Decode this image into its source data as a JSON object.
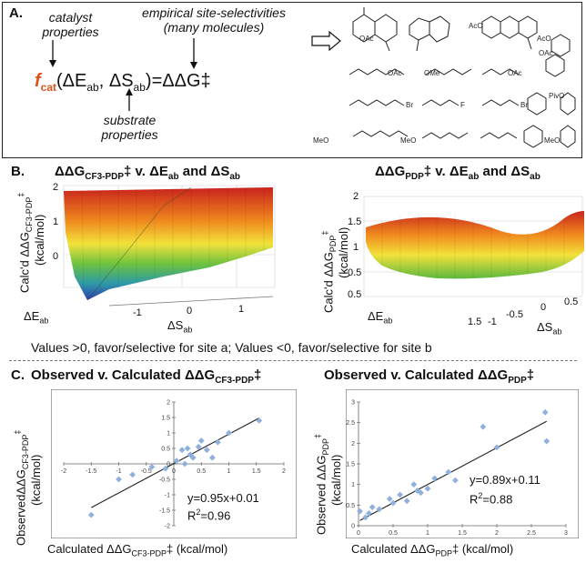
{
  "panel_a": {
    "label": "A.",
    "catalyst_note_1": "catalyst",
    "catalyst_note_2": "properties",
    "empirical_note_1": "empirical site-selectivities",
    "empirical_note_2": "(many molecules)",
    "f": "f",
    "cat": "cat",
    "eq_rest": "(ΔE",
    "ab1": "ab",
    "comma": ", ΔS",
    "ab2": "ab",
    "eq_end": ")=ΔΔG‡",
    "substrate_note_1": "substrate",
    "substrate_note_2": "properties",
    "molecule_labels": [
      "OAc",
      "AcO",
      "OAc",
      "AcO",
      "OMe",
      "OAc",
      "OAc",
      "Br",
      "F",
      "Br",
      "PivO",
      "MeO",
      "MeO",
      "MeO"
    ]
  },
  "panel_b": {
    "label": "B.",
    "left_title": "ΔΔG",
    "left_title_sub": "CF3-PDP",
    "left_title_rest": "‡ v. ΔE",
    "left_title_sub2": "ab",
    "left_title_rest2": " and ΔS",
    "left_title_sub3": "ab",
    "left_ylabel": "Calc'd ΔΔG",
    "left_ylabel_sub": "CF3-PDP",
    "left_ylabel_sup": "‡",
    "left_ylabel_units": "(kcal/mol)",
    "left_zticks": [
      "2",
      "1",
      "0"
    ],
    "left_xticks": [
      "-1",
      "0",
      "1"
    ],
    "left_xlabel": "ΔS",
    "left_xlabel_sub": "ab",
    "left_elabel": "ΔE",
    "left_elabel_sub": "ab",
    "right_title": "ΔΔG",
    "right_title_sub": "PDP",
    "right_title_rest": "‡ v. ΔE",
    "right_title_sub2": "ab",
    "right_title_rest2": " and ΔS",
    "right_title_sub3": "ab",
    "right_ylabel": "Calc'd ΔΔG",
    "right_ylabel_sub": "PDP",
    "right_ylabel_sup": "‡",
    "right_ylabel_units": "(kcal/mol)",
    "right_zticks": [
      "2",
      "1.5",
      "1",
      "0.5"
    ],
    "right_eticks": [
      "0.5",
      "1.5"
    ],
    "right_sticks": [
      "-1",
      "-0.5",
      "0",
      "0.5"
    ],
    "right_xlabel": "ΔS",
    "right_xlabel_sub": "ab",
    "right_elabel": "ΔE",
    "right_elabel_sub": "ab",
    "note": "Values >0, favor/selective for site a; Values <0, favor/selective for site b"
  },
  "panel_c": {
    "label": "C.",
    "left_title": "Observed v. Calculated ΔΔG",
    "left_title_sub": "CF3-PDP",
    "left_title_sup": "‡",
    "right_title": "Observed v. Calculated ΔΔG",
    "right_title_sub": "PDP",
    "right_title_sup": "‡",
    "left_ylabel": "ObservedΔΔG",
    "left_ylabel_sub": "CF3-PDP",
    "left_ylabel_sup": "‡",
    "left_ylabel_units": "(kcal/mol)",
    "left_xlabel": "Calculated ΔΔG",
    "left_xlabel_sub": "CF3-PDP",
    "left_xlabel_rest": "‡ (kcal/mol)",
    "left_eq": "y=0.95x+0.01",
    "left_r2": "R",
    "left_r2_sup": "2",
    "left_r2_val": "=0.96",
    "right_ylabel": "Observed ΔΔG",
    "right_ylabel_sub": "PDP",
    "right_ylabel_sup": "‡",
    "right_ylabel_units": "(kcal/mol)",
    "right_xlabel": "Calculated ΔΔG",
    "right_xlabel_sub": "PDP",
    "right_xlabel_rest": "‡ (kcal/mol)",
    "right_eq": "y=0.89x+0.11",
    "right_r2": "R",
    "right_r2_sup": "2",
    "right_r2_val": "=0.88"
  },
  "chart_data": [
    {
      "type": "scatter",
      "x_ticks": [
        "-2",
        "-1.5",
        "-1",
        "-0.5",
        "0",
        "0.5",
        "1",
        "1.5",
        "2"
      ],
      "y_ticks": [
        "2",
        "1.5",
        "1",
        "0.5",
        "0",
        "-0.5",
        "-1",
        "-1.5",
        "-2"
      ],
      "xlim": [
        -2,
        2
      ],
      "ylim": [
        -2,
        2
      ],
      "x": [
        -1.5,
        -1.0,
        -0.75,
        -0.4,
        -0.15,
        0.05,
        0.15,
        0.2,
        0.25,
        0.3,
        0.35,
        0.45,
        0.5,
        0.6,
        0.7,
        0.8,
        1.0,
        1.55
      ],
      "y": [
        -1.65,
        -0.5,
        -0.35,
        -0.1,
        -0.15,
        0.1,
        0.45,
        0.0,
        0.5,
        0.3,
        0.2,
        0.55,
        0.75,
        0.45,
        0.2,
        0.7,
        1.0,
        1.4
      ],
      "fit": {
        "slope": 0.95,
        "intercept": 0.01
      },
      "marker_color": "#8fb0dc",
      "line_color": "#222222"
    },
    {
      "type": "scatter",
      "x_ticks": [
        "0",
        "0.5",
        "1",
        "1.5",
        "2",
        "2.5",
        "3"
      ],
      "y_ticks": [
        "0",
        "0.5",
        "1",
        "1.5",
        "2",
        "2.5",
        "3"
      ],
      "xlim": [
        0,
        3
      ],
      "ylim": [
        0,
        3
      ],
      "x": [
        0.02,
        0.1,
        0.15,
        0.2,
        0.3,
        0.45,
        0.5,
        0.6,
        0.7,
        0.8,
        0.85,
        0.9,
        1.0,
        1.1,
        1.3,
        1.4,
        1.8,
        2.0,
        2.7,
        2.72
      ],
      "y": [
        0.35,
        0.2,
        0.3,
        0.45,
        0.4,
        0.65,
        0.55,
        0.75,
        0.6,
        1.0,
        0.85,
        0.8,
        0.9,
        1.15,
        1.3,
        1.1,
        2.4,
        1.9,
        2.75,
        2.05
      ],
      "fit": {
        "slope": 0.89,
        "intercept": 0.11
      },
      "marker_color": "#8fb0dc",
      "line_color": "#222222"
    }
  ]
}
